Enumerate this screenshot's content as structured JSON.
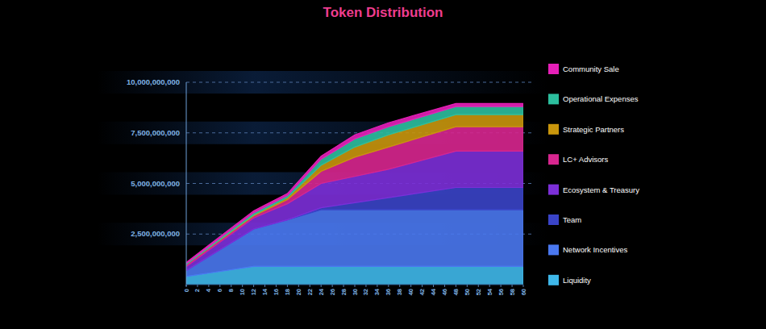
{
  "chart_data": {
    "type": "area",
    "title": "Token Distribution",
    "stacked": true,
    "grid": true,
    "legend": "right",
    "x": [
      0,
      12,
      18,
      24,
      30,
      36,
      48,
      60
    ],
    "xlim": [
      0,
      60
    ],
    "xticks": [
      0,
      2,
      4,
      6,
      8,
      10,
      12,
      14,
      16,
      18,
      20,
      22,
      24,
      26,
      28,
      30,
      32,
      34,
      36,
      38,
      40,
      42,
      44,
      46,
      48,
      50,
      52,
      54,
      56,
      58,
      60
    ],
    "ylim": [
      0,
      10000000000
    ],
    "yticks": [
      {
        "value": 2500000000,
        "label": "2,500,000,000"
      },
      {
        "value": 5000000000,
        "label": "5,000,000,000"
      },
      {
        "value": 7500000000,
        "label": "7,500,000,000"
      },
      {
        "value": 10000000000,
        "label": "10,000,000,000"
      }
    ],
    "series": [
      {
        "name": "Liquidity",
        "color": "#3fb8ea",
        "values": [
          400000000,
          900000000,
          900000000,
          900000000,
          900000000,
          900000000,
          900000000,
          900000000
        ]
      },
      {
        "name": "Network Incentives",
        "color": "#4a78f0",
        "values": [
          300000000,
          1850000000,
          2300000000,
          2800000000,
          2800000000,
          2800000000,
          2800000000,
          2800000000
        ]
      },
      {
        "name": "Team",
        "color": "#3a44c8",
        "values": [
          0,
          0,
          0,
          100000000,
          350000000,
          600000000,
          1100000000,
          1100000000
        ]
      },
      {
        "name": "Ecosystem & Treasury",
        "color": "#7c2fd8",
        "values": [
          200000000,
          550000000,
          800000000,
          1200000000,
          1300000000,
          1400000000,
          1800000000,
          1800000000
        ]
      },
      {
        "name": "LC+ Advisors",
        "color": "#d8268f",
        "values": [
          100000000,
          100000000,
          200000000,
          600000000,
          950000000,
          1100000000,
          1200000000,
          1200000000
        ]
      },
      {
        "name": "Strategic Partners",
        "color": "#c9960c",
        "values": [
          0,
          50000000,
          100000000,
          300000000,
          500000000,
          600000000,
          600000000,
          600000000
        ]
      },
      {
        "name": "Operational Expenses",
        "color": "#2cbf9e",
        "values": [
          50000000,
          100000000,
          100000000,
          300000000,
          400000000,
          400000000,
          400000000,
          400000000
        ]
      },
      {
        "name": "Community Sale",
        "color": "#e61fb8",
        "values": [
          50000000,
          100000000,
          100000000,
          150000000,
          200000000,
          200000000,
          150000000,
          150000000
        ]
      }
    ]
  }
}
